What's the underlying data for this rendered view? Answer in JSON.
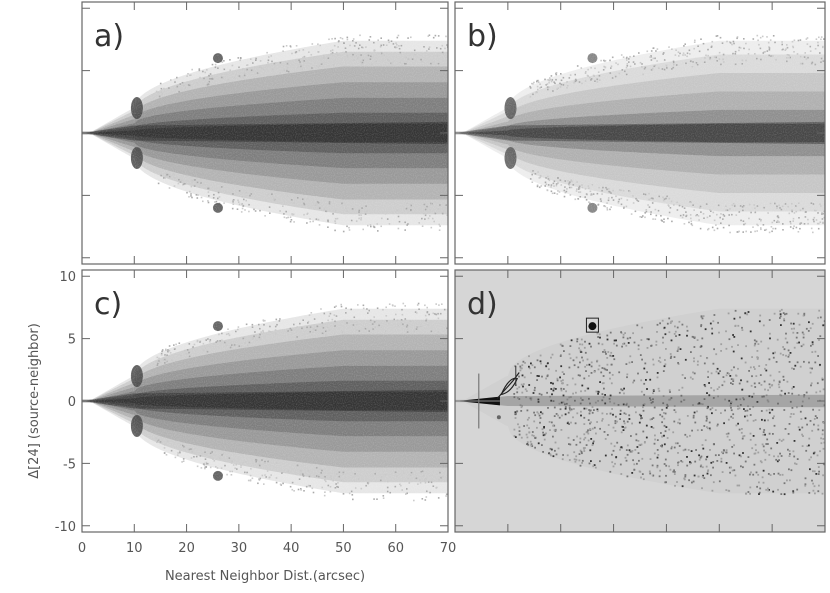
{
  "chart_data": {
    "type": "heatmap",
    "xlabel": "Nearest Neighbor Dist.(arcsec)",
    "ylabel": "Δ[24] (source-neighbor)",
    "xlim": [
      0,
      70
    ],
    "ylim": [
      -10.5,
      10.5
    ],
    "x_ticks": [
      0,
      10,
      20,
      30,
      40,
      50,
      60,
      70
    ],
    "y_ticks": [
      -10,
      -5,
      0,
      5,
      10
    ],
    "grid": false,
    "panels": [
      {
        "label": "a)",
        "style": "dense",
        "background": "#ffffff"
      },
      {
        "label": "b)",
        "style": "sparse",
        "background": "#ffffff"
      },
      {
        "label": "c)",
        "style": "dense",
        "background": "#ffffff"
      },
      {
        "label": "d)",
        "style": "residual",
        "background": "#d6d6d6"
      }
    ],
    "features": {
      "bump_near_x": 10.5,
      "bump_y": [
        2,
        -2
      ],
      "spots": [
        {
          "x": 26,
          "y": 6
        },
        {
          "x": 26,
          "y": -6
        }
      ],
      "envelope_max_half_width": 7.4
    }
  }
}
